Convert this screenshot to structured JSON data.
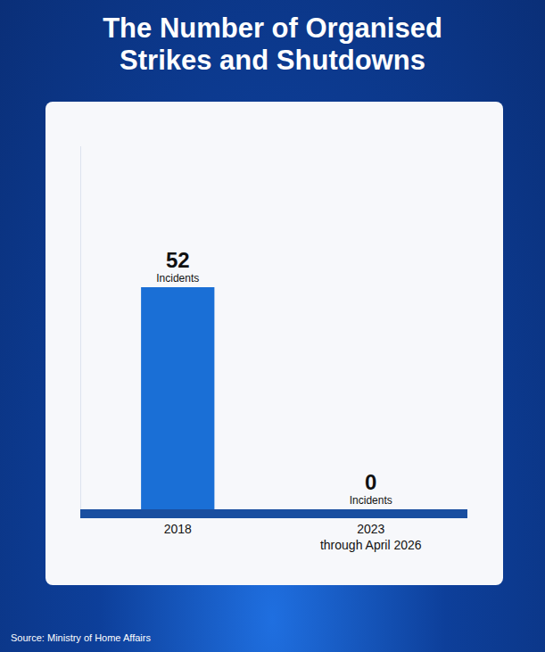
{
  "chart_data": {
    "type": "bar",
    "title": "The Number of Organised Strikes and Shutdowns",
    "categories": [
      "2018",
      "2023 through April 2026"
    ],
    "values": [
      52,
      0
    ],
    "value_labels": [
      "52 Incidents",
      "0 Incidents"
    ],
    "data_labels": true,
    "color": "#1a6fd6",
    "ylim": [
      0,
      85
    ],
    "tick_labels": "x",
    "grid": false,
    "source": "Source: Ministry of Home Affairs"
  }
}
